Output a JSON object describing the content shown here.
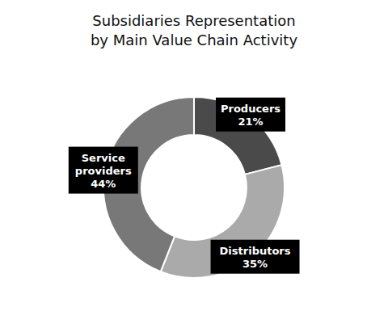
{
  "chart_data": {
    "type": "pie",
    "title": "Subsidiaries Representation\nby Main Value Chain Activity",
    "categories": [
      "Producers",
      "Distributors",
      "Service\nproviders"
    ],
    "values": [
      21,
      35,
      44
    ],
    "value_labels": [
      "21%",
      "35%",
      "44%"
    ],
    "colors": [
      "#4a4a4a",
      "#aaaaaa",
      "#787878"
    ],
    "data_labels": true
  }
}
